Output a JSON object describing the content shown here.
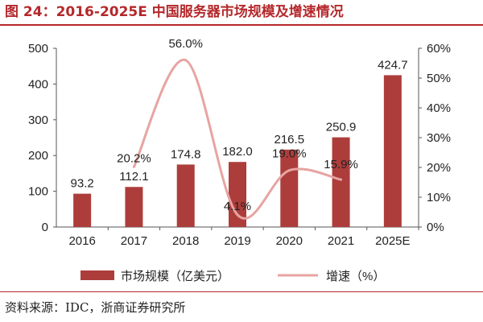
{
  "title": "图 24：2016-2025E 中国服务器市场规模及增速情况",
  "source": "资料来源：IDC，浙商证券研究所",
  "colors": {
    "bar": "#ad3d3b",
    "line": "#e7a4a2",
    "title": "#b5282b"
  },
  "chart_data": {
    "type": "bar",
    "categories": [
      "2016",
      "2017",
      "2018",
      "2019",
      "2020",
      "2021",
      "2025E"
    ],
    "series": [
      {
        "name": "市场规模（亿美元）",
        "type": "bar",
        "axis": "left",
        "values": [
          93.2,
          112.1,
          174.8,
          182.0,
          216.5,
          250.9,
          424.7
        ],
        "labels": [
          "93.2",
          "112.1",
          "174.8",
          "182.0",
          "216.5",
          "250.9",
          "424.7"
        ]
      },
      {
        "name": "增速（%）",
        "type": "line",
        "axis": "right",
        "smooth": true,
        "values": [
          null,
          20.2,
          56.0,
          4.1,
          19.0,
          15.9,
          null
        ],
        "labels": [
          "",
          "20.2%",
          "56.0%",
          "4.1%",
          "19.0%",
          "15.9%",
          ""
        ]
      }
    ],
    "y_left": {
      "ylim": [
        0,
        500
      ],
      "ticks": [
        "0",
        "100",
        "200",
        "300",
        "400",
        "500"
      ]
    },
    "y_right": {
      "ylim": [
        0,
        60
      ],
      "ticks": [
        "0%",
        "10%",
        "20%",
        "30%",
        "40%",
        "50%",
        "60%"
      ]
    },
    "grid": false,
    "legend": {
      "position": "bottom",
      "items": [
        "市场规模（亿美元）",
        "增速（%）"
      ]
    }
  }
}
